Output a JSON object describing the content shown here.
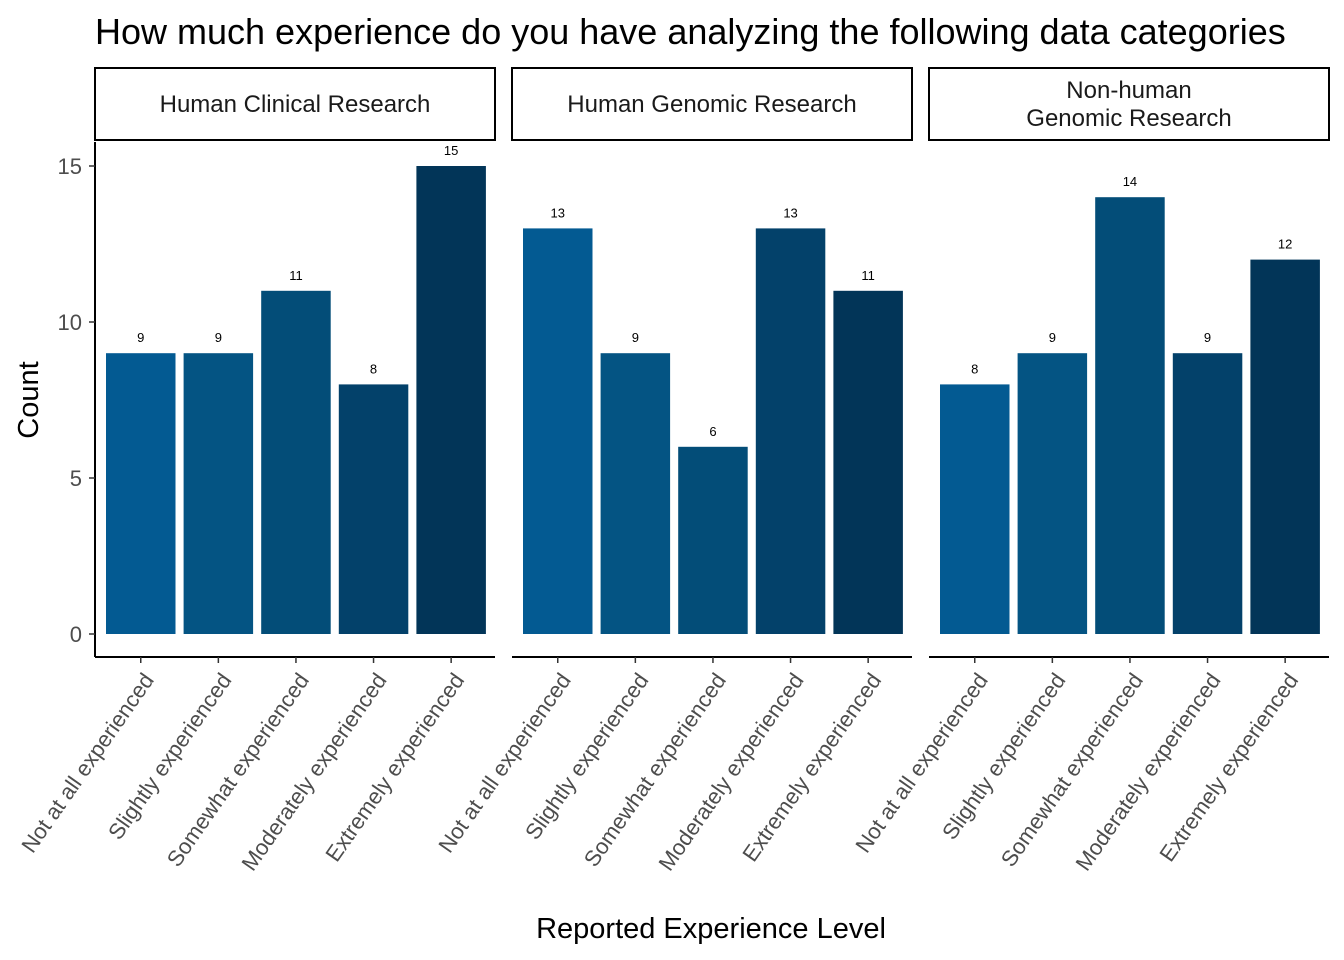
{
  "chart_data": {
    "type": "bar",
    "title": "How much experience do you have analyzing the following data categories",
    "xlabel": "Reported Experience Level",
    "ylabel": "Count",
    "ylim": [
      0,
      15
    ],
    "yticks": [
      0,
      5,
      10,
      15
    ],
    "grid": false,
    "categories": [
      "Not at all experienced",
      "Slightly experienced",
      "Somewhat experienced",
      "Moderately experienced",
      "Extremely experienced"
    ],
    "colors": [
      "#035a92",
      "#045483",
      "#034d78",
      "#03416a",
      "#023558"
    ],
    "facets": [
      {
        "name": [
          "Human Clinical Research"
        ],
        "values": [
          9,
          9,
          11,
          8,
          15
        ]
      },
      {
        "name": [
          "Human Genomic Research"
        ],
        "values": [
          13,
          9,
          6,
          13,
          11
        ]
      },
      {
        "name": [
          "Non-human",
          "Genomic Research"
        ],
        "values": [
          8,
          9,
          14,
          9,
          12
        ]
      }
    ]
  }
}
